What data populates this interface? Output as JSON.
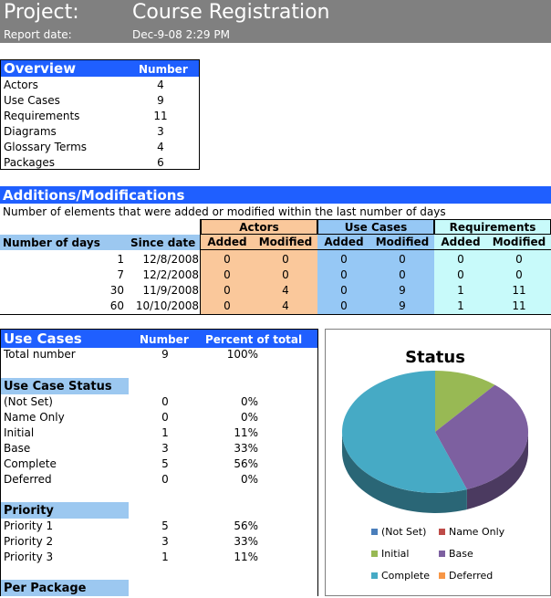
{
  "header": {
    "project_label": "Project:",
    "project_name": "Course Registration",
    "report_label": "Report date:",
    "report_date": "Dec-9-08  2:29 PM"
  },
  "overview": {
    "title": "Overview",
    "number_header": "Number",
    "rows": [
      {
        "label": "Actors",
        "value": "4"
      },
      {
        "label": "Use Cases",
        "value": "9"
      },
      {
        "label": "Requirements",
        "value": "11"
      },
      {
        "label": "Diagrams",
        "value": "3"
      },
      {
        "label": "Glossary Terms",
        "value": "4"
      },
      {
        "label": "Packages",
        "value": "6"
      }
    ]
  },
  "additions": {
    "title": "Additions/Modifications",
    "subtitle": "Number of elements that were added or modified within the last number of days",
    "col_days": "Number of days",
    "col_since": "Since date",
    "groups": [
      "Actors",
      "Use Cases",
      "Requirements"
    ],
    "sub_added": "Added",
    "sub_modified": "Modified",
    "rows": [
      {
        "days": "1",
        "since": "12/8/2008",
        "vals": [
          "0",
          "0",
          "0",
          "0",
          "0",
          "0"
        ]
      },
      {
        "days": "7",
        "since": "12/2/2008",
        "vals": [
          "0",
          "0",
          "0",
          "0",
          "0",
          "0"
        ]
      },
      {
        "days": "30",
        "since": "11/9/2008",
        "vals": [
          "0",
          "4",
          "0",
          "9",
          "1",
          "11"
        ]
      },
      {
        "days": "60",
        "since": "10/10/2008",
        "vals": [
          "0",
          "4",
          "0",
          "9",
          "1",
          "11"
        ]
      }
    ]
  },
  "use_cases": {
    "title": "Use Cases",
    "number_header": "Number",
    "percent_header": "Percent of total",
    "total": {
      "label": "Total number",
      "number": "9",
      "percent": "100%"
    },
    "status_title": "Use Case Status",
    "status_rows": [
      {
        "label": "(Not Set)",
        "number": "0",
        "percent": "0%"
      },
      {
        "label": "Name Only",
        "number": "0",
        "percent": "0%"
      },
      {
        "label": "Initial",
        "number": "1",
        "percent": "11%"
      },
      {
        "label": "Base",
        "number": "3",
        "percent": "33%"
      },
      {
        "label": "Complete",
        "number": "5",
        "percent": "56%"
      },
      {
        "label": "Deferred",
        "number": "0",
        "percent": "0%"
      }
    ],
    "priority_title": "Priority",
    "priority_rows": [
      {
        "label": "Priority 1",
        "number": "5",
        "percent": "56%"
      },
      {
        "label": "Priority 2",
        "number": "3",
        "percent": "33%"
      },
      {
        "label": "Priority 3",
        "number": "1",
        "percent": "11%"
      }
    ],
    "package_title": "Per Package"
  },
  "chart_data": {
    "type": "pie",
    "title": "Status",
    "categories": [
      "(Not Set)",
      "Name Only",
      "Initial",
      "Base",
      "Complete",
      "Deferred"
    ],
    "values": [
      0,
      0,
      1,
      3,
      5,
      0
    ],
    "colors": [
      "#4a7ebb",
      "#be4b48",
      "#98b954",
      "#7d60a0",
      "#46aac5",
      "#f79646"
    ],
    "legend_placement": "bottom"
  }
}
